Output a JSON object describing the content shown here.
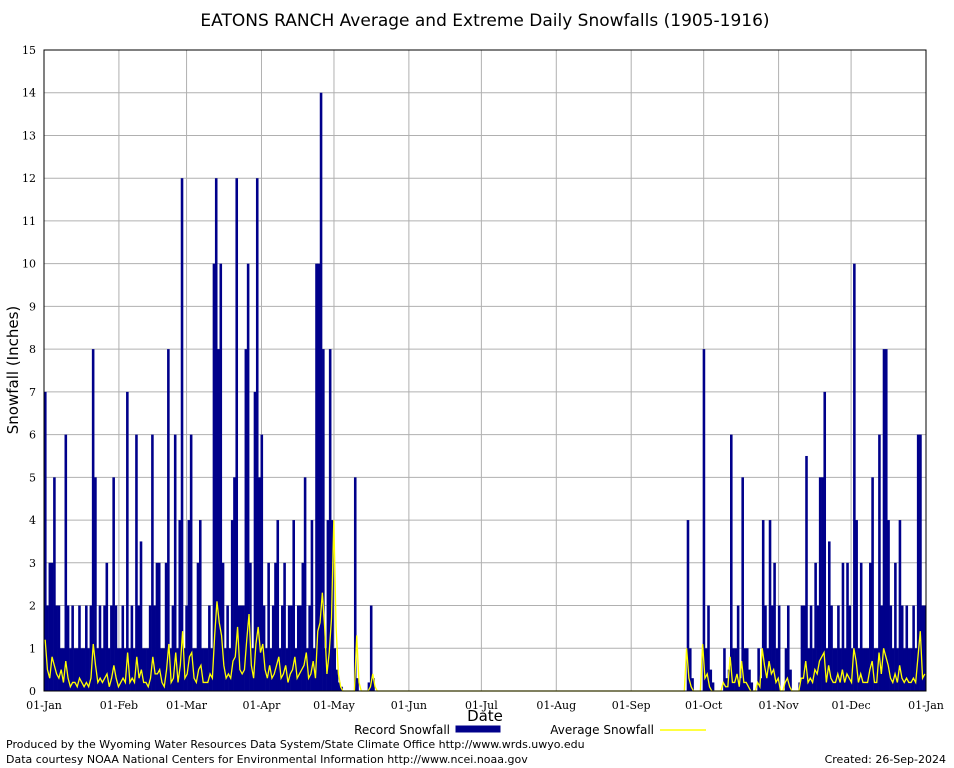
{
  "chart_data": {
    "type": "bar",
    "title": "EATONS RANCH Average and Extreme Daily Snowfalls (1905-1916)",
    "xlabel": "Date",
    "ylabel": "Snowfall (Inches)",
    "ylim": [
      0,
      15
    ],
    "yticks": [
      "0",
      "1",
      "2",
      "3",
      "4",
      "5",
      "6",
      "7",
      "8",
      "9",
      "10",
      "11",
      "12",
      "13",
      "14",
      "15"
    ],
    "xticks": [
      {
        "label": "01-Jan",
        "day": 0
      },
      {
        "label": "01-Feb",
        "day": 31
      },
      {
        "label": "01-Mar",
        "day": 59
      },
      {
        "label": "01-Apr",
        "day": 90
      },
      {
        "label": "01-May",
        "day": 120
      },
      {
        "label": "01-Jun",
        "day": 151
      },
      {
        "label": "01-Jul",
        "day": 181
      },
      {
        "label": "01-Aug",
        "day": 212
      },
      {
        "label": "01-Sep",
        "day": 243
      },
      {
        "label": "01-Oct",
        "day": 273
      },
      {
        "label": "01-Nov",
        "day": 304
      },
      {
        "label": "01-Dec",
        "day": 334
      },
      {
        "label": "01-Jan",
        "day": 365
      }
    ],
    "grid": true,
    "legend_position": "bottom",
    "series": [
      {
        "name": "Record Snowfall",
        "color": "#00008b",
        "values": [
          7,
          2,
          3,
          3,
          5,
          2,
          2,
          1,
          1,
          6,
          2,
          1,
          2,
          1,
          1,
          2,
          1,
          1,
          2,
          1,
          2,
          8,
          5,
          1,
          2,
          1,
          2,
          3,
          1,
          2,
          5,
          2,
          1,
          1,
          2,
          1,
          7,
          1,
          2,
          1,
          6,
          2,
          3.5,
          1,
          1,
          1,
          2,
          6,
          2,
          3,
          3,
          1,
          1,
          3,
          8,
          1,
          2,
          6,
          1,
          4,
          12,
          1,
          2,
          4,
          6,
          1,
          1,
          3,
          4,
          1,
          1,
          1,
          2,
          1,
          10,
          12,
          8,
          10,
          3,
          1,
          2,
          1,
          4,
          5,
          12,
          2,
          2,
          2,
          8,
          10,
          3,
          1,
          7,
          12,
          5,
          6,
          2,
          1,
          3,
          1,
          2,
          3,
          4,
          1,
          2,
          3,
          1,
          2,
          2,
          4,
          1,
          2,
          2,
          3,
          5,
          1,
          2,
          4,
          1,
          10,
          10,
          14,
          8,
          1,
          4,
          8,
          4,
          1,
          0.5,
          0.2,
          0.1,
          0,
          0,
          0,
          0,
          0,
          5,
          0.3,
          0,
          0,
          0,
          0,
          0.2,
          2,
          0.3,
          0,
          0,
          0,
          0,
          0,
          0,
          0,
          0,
          0,
          0,
          0,
          0,
          0,
          0,
          0,
          0,
          0,
          0,
          0,
          0,
          0,
          0,
          0,
          0,
          0,
          0,
          0,
          0,
          0,
          0,
          0,
          0,
          0,
          0,
          0,
          0,
          0,
          0,
          0,
          0,
          0,
          0,
          0,
          0,
          0,
          0,
          0,
          0,
          0,
          0,
          0,
          0,
          0,
          0,
          0,
          0,
          0,
          0,
          0,
          0,
          0,
          0,
          0,
          0,
          0,
          0,
          0,
          0,
          0,
          0,
          0,
          0,
          0,
          0,
          0,
          0,
          0,
          0,
          0,
          0,
          0,
          0,
          0,
          0,
          0,
          0,
          0,
          0,
          0,
          0,
          0,
          0,
          0,
          0,
          0,
          0,
          0,
          0,
          0,
          0,
          0,
          0,
          0,
          0,
          0,
          0,
          0,
          0,
          0,
          0,
          0,
          0,
          0,
          0,
          0,
          0,
          0,
          0,
          0,
          0,
          0,
          0,
          0,
          0,
          0,
          0,
          0,
          0,
          0,
          0,
          0,
          0,
          0,
          0,
          0,
          0,
          0,
          4,
          1,
          0.3,
          0,
          0,
          0,
          0,
          8,
          1,
          2,
          0.5,
          0.2,
          0,
          0,
          0,
          0,
          1,
          0.3,
          0.5,
          6,
          1,
          1,
          2,
          0.3,
          5,
          1,
          1,
          0.5,
          0.2,
          0,
          0,
          1,
          0.3,
          4,
          2,
          1,
          4,
          2,
          3,
          1,
          2,
          0,
          0,
          1,
          2,
          0.5,
          0,
          0,
          0,
          0.2,
          2,
          2,
          5.5,
          1,
          2,
          1,
          3,
          2,
          5,
          5,
          7,
          1,
          3.5,
          2,
          1,
          1,
          2,
          1,
          3,
          1,
          3,
          2,
          1,
          10,
          4,
          1,
          3,
          1,
          1,
          1,
          3,
          5,
          1,
          1,
          6,
          2,
          8,
          8,
          4,
          2,
          1,
          3,
          1,
          4,
          2,
          1,
          2,
          1,
          1,
          2,
          1,
          6,
          6,
          2,
          2
        ]
      },
      {
        "name": "Average Snowfall",
        "color": "#ffff00",
        "values": [
          1.2,
          0.5,
          0.3,
          0.8,
          0.6,
          0.4,
          0.3,
          0.5,
          0.2,
          0.7,
          0.3,
          0.1,
          0.2,
          0.2,
          0.1,
          0.3,
          0.2,
          0.1,
          0.2,
          0.1,
          0.3,
          1.1,
          0.6,
          0.2,
          0.3,
          0.2,
          0.3,
          0.4,
          0.1,
          0.3,
          0.6,
          0.3,
          0.1,
          0.2,
          0.3,
          0.2,
          0.9,
          0.2,
          0.3,
          0.2,
          0.8,
          0.3,
          0.5,
          0.2,
          0.2,
          0.1,
          0.3,
          0.8,
          0.4,
          0.4,
          0.5,
          0.2,
          0.1,
          0.5,
          1.1,
          0.2,
          0.3,
          0.9,
          0.2,
          0.6,
          1.4,
          0.3,
          0.4,
          0.8,
          0.9,
          0.3,
          0.2,
          0.5,
          0.6,
          0.2,
          0.2,
          0.2,
          0.4,
          0.3,
          1.3,
          2.1,
          1.6,
          1.3,
          0.6,
          0.3,
          0.4,
          0.3,
          0.7,
          0.8,
          1.5,
          0.5,
          0.4,
          0.5,
          1.2,
          1.8,
          0.6,
          0.3,
          1.1,
          1.5,
          0.9,
          1.1,
          0.5,
          0.3,
          0.6,
          0.3,
          0.4,
          0.6,
          0.8,
          0.3,
          0.4,
          0.6,
          0.2,
          0.4,
          0.5,
          0.8,
          0.3,
          0.4,
          0.5,
          0.6,
          0.9,
          0.3,
          0.4,
          0.7,
          0.3,
          1.4,
          1.6,
          2.3,
          1.5,
          0.4,
          0.9,
          1.7,
          4,
          1.5,
          0.4,
          0.1,
          0,
          0,
          0,
          0,
          0,
          0,
          1.3,
          0.2,
          0,
          0,
          0,
          0,
          0.1,
          0.4,
          0.1,
          0,
          0,
          0,
          0,
          0,
          0,
          0,
          0,
          0,
          0,
          0,
          0,
          0,
          0,
          0,
          0,
          0,
          0,
          0,
          0,
          0,
          0,
          0,
          0,
          0,
          0,
          0,
          0,
          0,
          0,
          0,
          0,
          0,
          0,
          0,
          0,
          0,
          0,
          0,
          0,
          0,
          0,
          0,
          0,
          0,
          0,
          0,
          0,
          0,
          0,
          0,
          0,
          0,
          0,
          0,
          0,
          0,
          0,
          0,
          0,
          0,
          0,
          0,
          0,
          0,
          0,
          0,
          0,
          0,
          0,
          0,
          0,
          0,
          0,
          0,
          0,
          0,
          0,
          0,
          0,
          0,
          0,
          0,
          0,
          0,
          0,
          0,
          0,
          0,
          0,
          0,
          0,
          0,
          0,
          0,
          0,
          0,
          0,
          0,
          0,
          0,
          0,
          0,
          0,
          0,
          0,
          0,
          0,
          0,
          0,
          0,
          0,
          0,
          0,
          0,
          0,
          0,
          0,
          0,
          0,
          0,
          0,
          0,
          0,
          0,
          0,
          0,
          0,
          0,
          0,
          0,
          0,
          0,
          0,
          0,
          1,
          0.3,
          0.1,
          0,
          0,
          0,
          0,
          1.1,
          0.3,
          0.4,
          0.1,
          0,
          0,
          0,
          0,
          0,
          0.2,
          0.1,
          0.1,
          0.8,
          0.2,
          0.2,
          0.4,
          0.1,
          0.7,
          0.2,
          0.2,
          0.1,
          0,
          0,
          0,
          0.2,
          0.1,
          1,
          0.6,
          0.3,
          0.7,
          0.4,
          0.5,
          0.2,
          0.3,
          0,
          0,
          0.2,
          0.3,
          0.1,
          0,
          0,
          0,
          0,
          0.3,
          0.3,
          0.7,
          0.2,
          0.3,
          0.2,
          0.5,
          0.4,
          0.7,
          0.8,
          0.9,
          0.2,
          0.6,
          0.3,
          0.2,
          0.2,
          0.4,
          0.2,
          0.5,
          0.2,
          0.4,
          0.3,
          0.2,
          1,
          0.7,
          0.2,
          0.4,
          0.2,
          0.2,
          0.2,
          0.5,
          0.7,
          0.2,
          0.2,
          0.9,
          0.4,
          1,
          0.8,
          0.6,
          0.3,
          0.2,
          0.4,
          0.2,
          0.6,
          0.3,
          0.2,
          0.3,
          0.2,
          0.2,
          0.3,
          0.2,
          0.8,
          1.4,
          0.3,
          0.4
        ]
      }
    ]
  },
  "footer": {
    "credit_line1": "Produced by the Wyoming Water Resources Data System/State Climate Office http://www.wrds.uwyo.edu",
    "credit_line2": "Data courtesy NOAA National Centers for Environmental Information http://www.ncei.noaa.gov",
    "created": "Created:  26-Sep-2024"
  }
}
